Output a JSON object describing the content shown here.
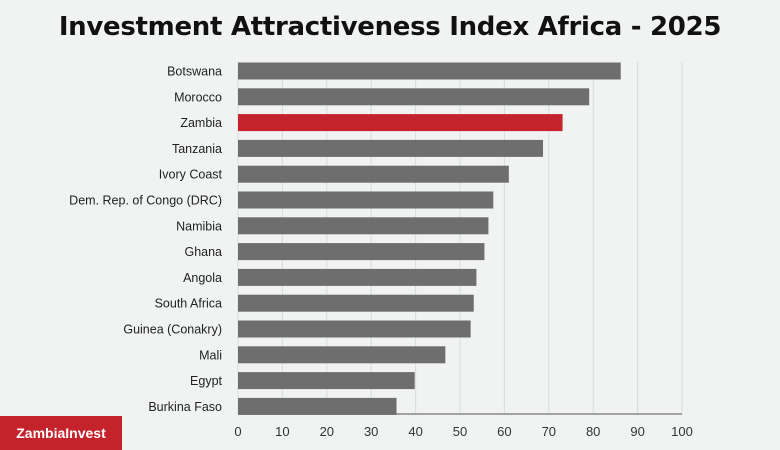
{
  "brand": {
    "logo_text": "ZambiaInvest"
  },
  "colors": {
    "bar": "#6e6e6e",
    "highlight": "#c4232b",
    "grid": "#d9dcdc",
    "axis": "#888888"
  },
  "chart_data": {
    "type": "bar",
    "orientation": "horizontal",
    "title": "Investment Attractiveness Index Africa - 2025",
    "xlabel": "",
    "ylabel": "",
    "xlim": [
      0,
      100
    ],
    "xticks": [
      0,
      10,
      20,
      30,
      40,
      50,
      60,
      70,
      80,
      90,
      100
    ],
    "grid": true,
    "highlighted": "Zambia",
    "categories": [
      "Botswana",
      "Morocco",
      "Zambia",
      "Tanzania",
      "Ivory Coast",
      "Dem. Rep. of Congo (DRC)",
      "Namibia",
      "Ghana",
      "Angola",
      "South Africa",
      "Guinea (Conakry)",
      "Mali",
      "Egypt",
      "Burkina Faso"
    ],
    "values": [
      86.2,
      79.1,
      73.1,
      68.7,
      61.0,
      57.5,
      56.4,
      55.5,
      53.7,
      53.1,
      52.4,
      46.7,
      39.8,
      35.7
    ]
  }
}
